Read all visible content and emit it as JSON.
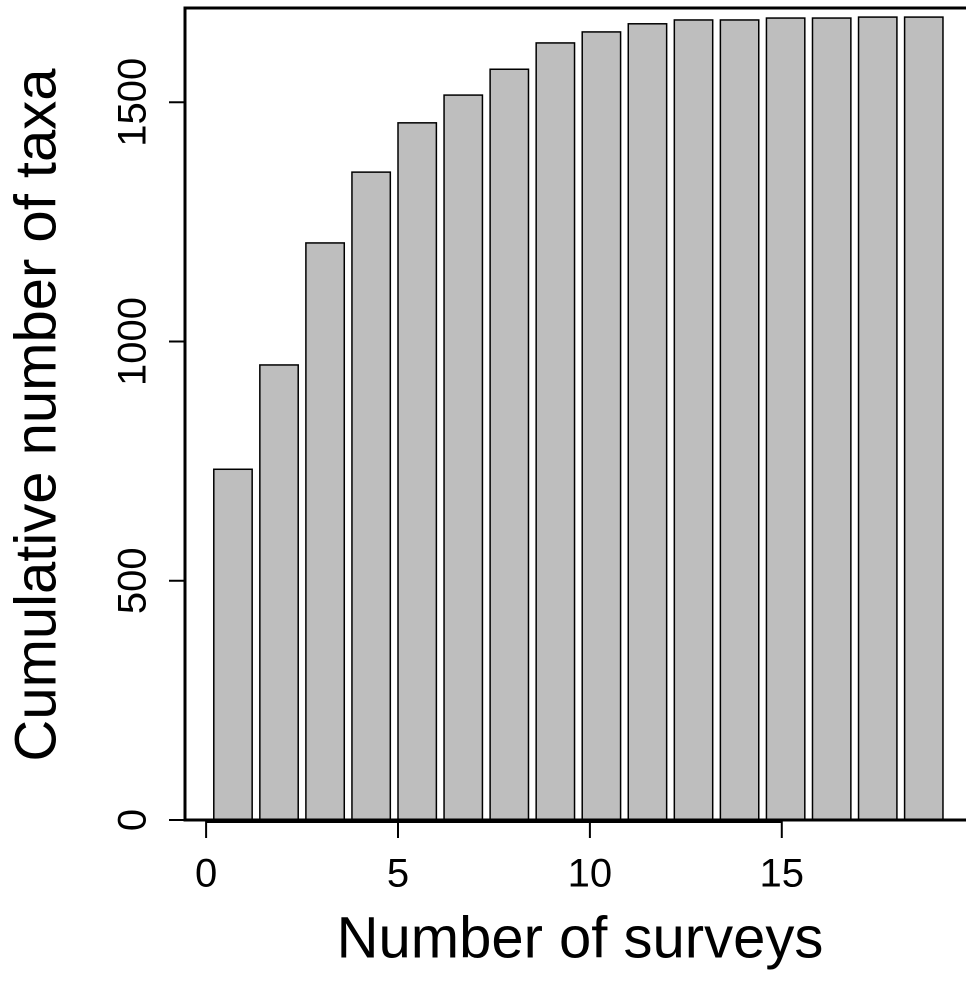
{
  "chart_data": {
    "type": "bar",
    "x_label": "Number of surveys",
    "y_label": "Cumulative number of taxa",
    "x": [
      0.7,
      1.9,
      3.1,
      4.3,
      5.5,
      6.7,
      7.9,
      9.1,
      10.3,
      11.5,
      12.7,
      13.9,
      15.1,
      16.3,
      17.5,
      18.7
    ],
    "values": [
      733,
      951,
      1206,
      1354,
      1457,
      1515,
      1569,
      1624,
      1647,
      1664,
      1672,
      1672,
      1676,
      1676,
      1678,
      1678
    ],
    "color": "#bebebe",
    "xlim": [
      -0.55,
      19.8
    ],
    "xticks": [
      0,
      5,
      10,
      15
    ],
    "ylim": [
      0,
      1697
    ],
    "yticks": [
      0,
      500,
      1000,
      1500
    ]
  }
}
